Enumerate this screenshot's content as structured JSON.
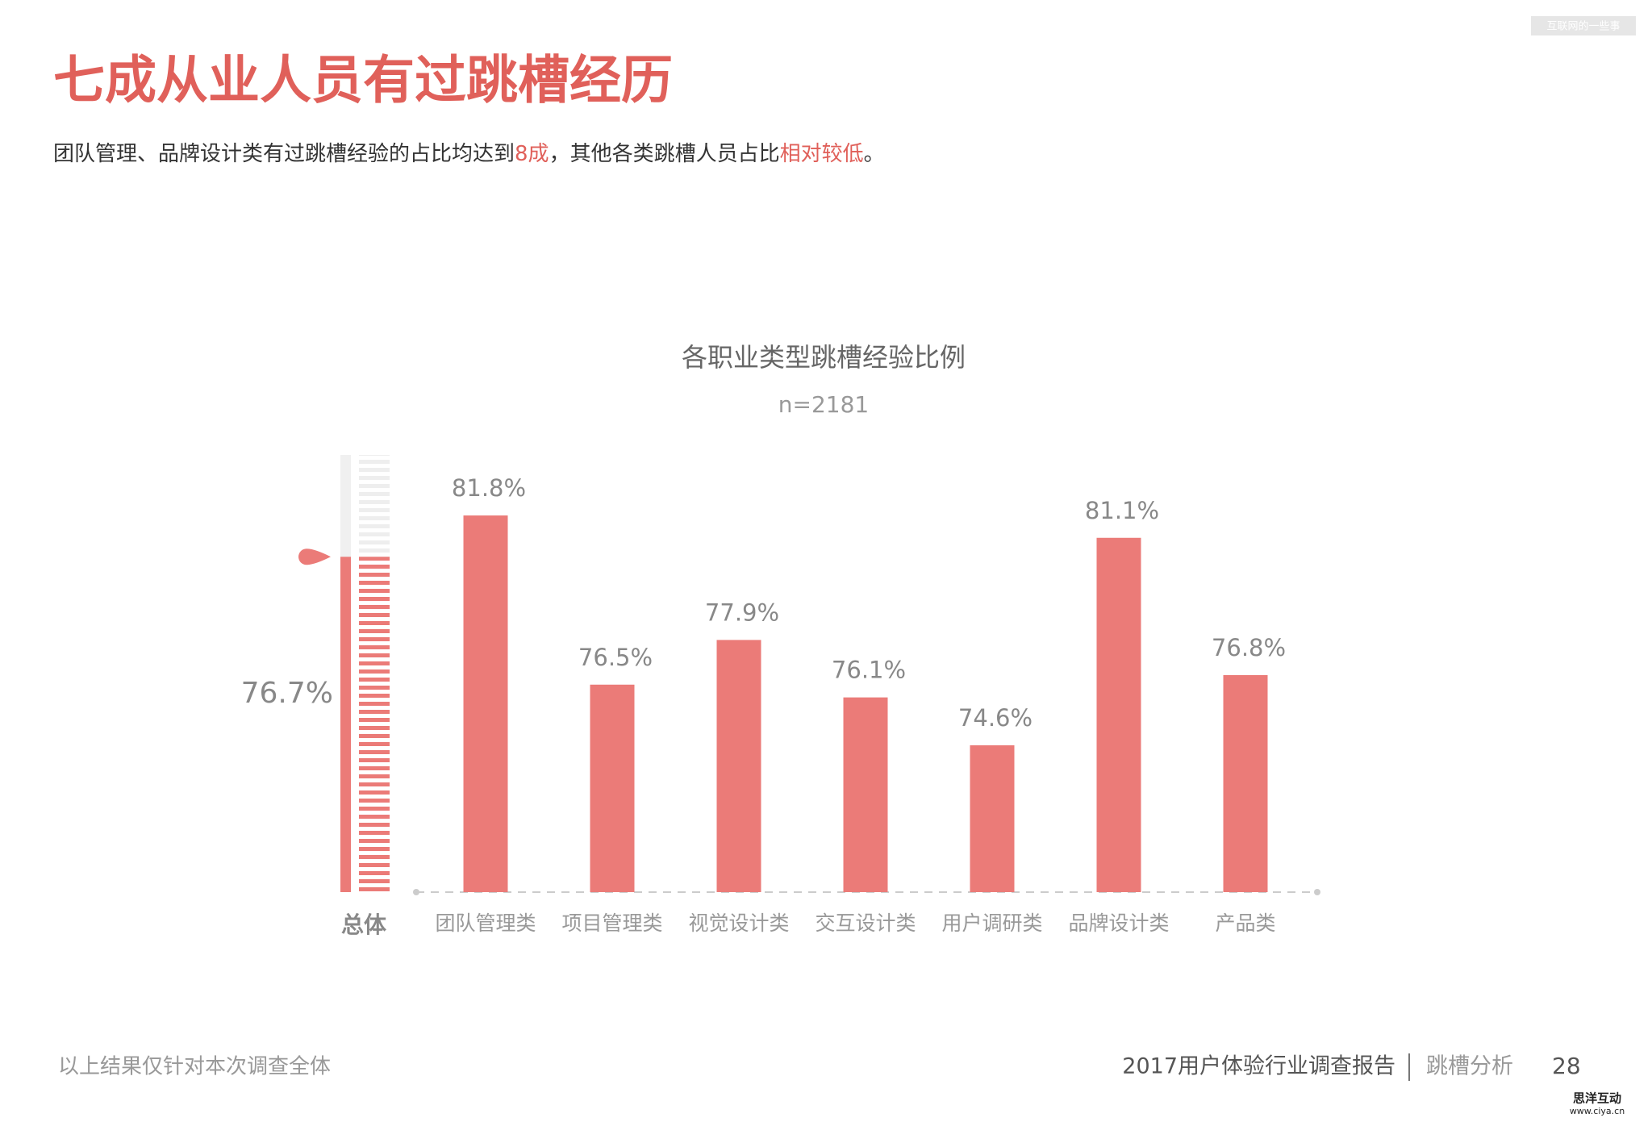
{
  "header": {
    "title": "七成从业人员有过跳槽经历",
    "subtitle": [
      {
        "text": "团队管理、品牌设计类有过跳槽经验的占比均达到",
        "color": "#333333"
      },
      {
        "text": "8成",
        "color": "#e0605a"
      },
      {
        "text": "，其他各类跳槽人员占比",
        "color": "#333333"
      },
      {
        "text": "相对较低",
        "color": "#e0605a"
      },
      {
        "text": "。",
        "color": "#333333"
      }
    ],
    "watermark": "互联网的一些事"
  },
  "chart_data": {
    "type": "bar",
    "title": "各职业类型跳槽经验比例",
    "subtitle": "n=2181",
    "categories": [
      "团队管理类",
      "项目管理类",
      "视觉设计类",
      "交互设计类",
      "用户调研类",
      "品牌设计类",
      "产品类"
    ],
    "values": [
      81.8,
      76.5,
      77.9,
      76.1,
      74.6,
      81.1,
      76.8
    ],
    "value_labels": [
      "81.8%",
      "76.5%",
      "77.9%",
      "76.1%",
      "74.6%",
      "81.1%",
      "76.8%"
    ],
    "color": "#eb7b78",
    "ylim": [
      70,
      84
    ],
    "overall": {
      "label": "总体",
      "value": 76.7,
      "value_label": "76.7%",
      "lim": [
        0,
        100
      ],
      "color": "#eb7b78"
    }
  },
  "footer": {
    "note": "以上结果仅针对本次调查全体",
    "report": "2017用户体验行业调查报告",
    "section": "跳槽分析",
    "page": "28",
    "logo": "思洋互动",
    "url": "www.ciya.cn"
  }
}
